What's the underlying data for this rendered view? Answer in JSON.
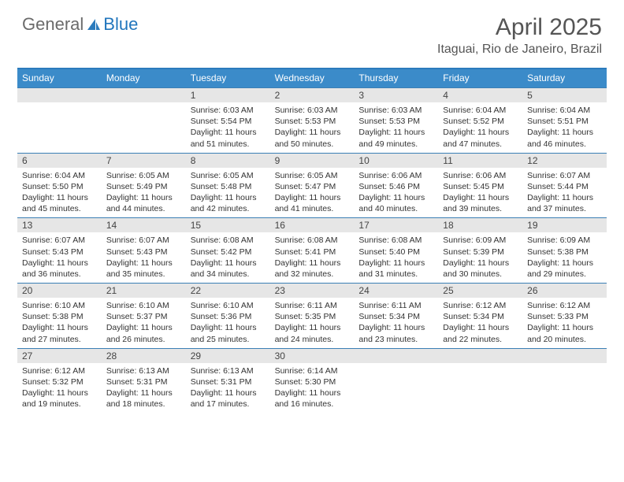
{
  "logo": {
    "text1": "General",
    "text2": "Blue"
  },
  "title": "April 2025",
  "location": "Itaguai, Rio de Janeiro, Brazil",
  "colors": {
    "header_bar": "#3b8bc9",
    "header_border": "#2b7bbd",
    "week_divider": "#3b7fb5",
    "daynum_bg": "#e6e6e6",
    "logo_gray": "#6b6b6b",
    "logo_blue": "#2176bd",
    "text": "#333333",
    "title_text": "#555555"
  },
  "day_headers": [
    "Sunday",
    "Monday",
    "Tuesday",
    "Wednesday",
    "Thursday",
    "Friday",
    "Saturday"
  ],
  "weeks": [
    [
      {
        "n": "",
        "sr": "",
        "ss": "",
        "dl": ""
      },
      {
        "n": "",
        "sr": "",
        "ss": "",
        "dl": ""
      },
      {
        "n": "1",
        "sr": "Sunrise: 6:03 AM",
        "ss": "Sunset: 5:54 PM",
        "dl": "Daylight: 11 hours and 51 minutes."
      },
      {
        "n": "2",
        "sr": "Sunrise: 6:03 AM",
        "ss": "Sunset: 5:53 PM",
        "dl": "Daylight: 11 hours and 50 minutes."
      },
      {
        "n": "3",
        "sr": "Sunrise: 6:03 AM",
        "ss": "Sunset: 5:53 PM",
        "dl": "Daylight: 11 hours and 49 minutes."
      },
      {
        "n": "4",
        "sr": "Sunrise: 6:04 AM",
        "ss": "Sunset: 5:52 PM",
        "dl": "Daylight: 11 hours and 47 minutes."
      },
      {
        "n": "5",
        "sr": "Sunrise: 6:04 AM",
        "ss": "Sunset: 5:51 PM",
        "dl": "Daylight: 11 hours and 46 minutes."
      }
    ],
    [
      {
        "n": "6",
        "sr": "Sunrise: 6:04 AM",
        "ss": "Sunset: 5:50 PM",
        "dl": "Daylight: 11 hours and 45 minutes."
      },
      {
        "n": "7",
        "sr": "Sunrise: 6:05 AM",
        "ss": "Sunset: 5:49 PM",
        "dl": "Daylight: 11 hours and 44 minutes."
      },
      {
        "n": "8",
        "sr": "Sunrise: 6:05 AM",
        "ss": "Sunset: 5:48 PM",
        "dl": "Daylight: 11 hours and 42 minutes."
      },
      {
        "n": "9",
        "sr": "Sunrise: 6:05 AM",
        "ss": "Sunset: 5:47 PM",
        "dl": "Daylight: 11 hours and 41 minutes."
      },
      {
        "n": "10",
        "sr": "Sunrise: 6:06 AM",
        "ss": "Sunset: 5:46 PM",
        "dl": "Daylight: 11 hours and 40 minutes."
      },
      {
        "n": "11",
        "sr": "Sunrise: 6:06 AM",
        "ss": "Sunset: 5:45 PM",
        "dl": "Daylight: 11 hours and 39 minutes."
      },
      {
        "n": "12",
        "sr": "Sunrise: 6:07 AM",
        "ss": "Sunset: 5:44 PM",
        "dl": "Daylight: 11 hours and 37 minutes."
      }
    ],
    [
      {
        "n": "13",
        "sr": "Sunrise: 6:07 AM",
        "ss": "Sunset: 5:43 PM",
        "dl": "Daylight: 11 hours and 36 minutes."
      },
      {
        "n": "14",
        "sr": "Sunrise: 6:07 AM",
        "ss": "Sunset: 5:43 PM",
        "dl": "Daylight: 11 hours and 35 minutes."
      },
      {
        "n": "15",
        "sr": "Sunrise: 6:08 AM",
        "ss": "Sunset: 5:42 PM",
        "dl": "Daylight: 11 hours and 34 minutes."
      },
      {
        "n": "16",
        "sr": "Sunrise: 6:08 AM",
        "ss": "Sunset: 5:41 PM",
        "dl": "Daylight: 11 hours and 32 minutes."
      },
      {
        "n": "17",
        "sr": "Sunrise: 6:08 AM",
        "ss": "Sunset: 5:40 PM",
        "dl": "Daylight: 11 hours and 31 minutes."
      },
      {
        "n": "18",
        "sr": "Sunrise: 6:09 AM",
        "ss": "Sunset: 5:39 PM",
        "dl": "Daylight: 11 hours and 30 minutes."
      },
      {
        "n": "19",
        "sr": "Sunrise: 6:09 AM",
        "ss": "Sunset: 5:38 PM",
        "dl": "Daylight: 11 hours and 29 minutes."
      }
    ],
    [
      {
        "n": "20",
        "sr": "Sunrise: 6:10 AM",
        "ss": "Sunset: 5:38 PM",
        "dl": "Daylight: 11 hours and 27 minutes."
      },
      {
        "n": "21",
        "sr": "Sunrise: 6:10 AM",
        "ss": "Sunset: 5:37 PM",
        "dl": "Daylight: 11 hours and 26 minutes."
      },
      {
        "n": "22",
        "sr": "Sunrise: 6:10 AM",
        "ss": "Sunset: 5:36 PM",
        "dl": "Daylight: 11 hours and 25 minutes."
      },
      {
        "n": "23",
        "sr": "Sunrise: 6:11 AM",
        "ss": "Sunset: 5:35 PM",
        "dl": "Daylight: 11 hours and 24 minutes."
      },
      {
        "n": "24",
        "sr": "Sunrise: 6:11 AM",
        "ss": "Sunset: 5:34 PM",
        "dl": "Daylight: 11 hours and 23 minutes."
      },
      {
        "n": "25",
        "sr": "Sunrise: 6:12 AM",
        "ss": "Sunset: 5:34 PM",
        "dl": "Daylight: 11 hours and 22 minutes."
      },
      {
        "n": "26",
        "sr": "Sunrise: 6:12 AM",
        "ss": "Sunset: 5:33 PM",
        "dl": "Daylight: 11 hours and 20 minutes."
      }
    ],
    [
      {
        "n": "27",
        "sr": "Sunrise: 6:12 AM",
        "ss": "Sunset: 5:32 PM",
        "dl": "Daylight: 11 hours and 19 minutes."
      },
      {
        "n": "28",
        "sr": "Sunrise: 6:13 AM",
        "ss": "Sunset: 5:31 PM",
        "dl": "Daylight: 11 hours and 18 minutes."
      },
      {
        "n": "29",
        "sr": "Sunrise: 6:13 AM",
        "ss": "Sunset: 5:31 PM",
        "dl": "Daylight: 11 hours and 17 minutes."
      },
      {
        "n": "30",
        "sr": "Sunrise: 6:14 AM",
        "ss": "Sunset: 5:30 PM",
        "dl": "Daylight: 11 hours and 16 minutes."
      },
      {
        "n": "",
        "sr": "",
        "ss": "",
        "dl": ""
      },
      {
        "n": "",
        "sr": "",
        "ss": "",
        "dl": ""
      },
      {
        "n": "",
        "sr": "",
        "ss": "",
        "dl": ""
      }
    ]
  ]
}
